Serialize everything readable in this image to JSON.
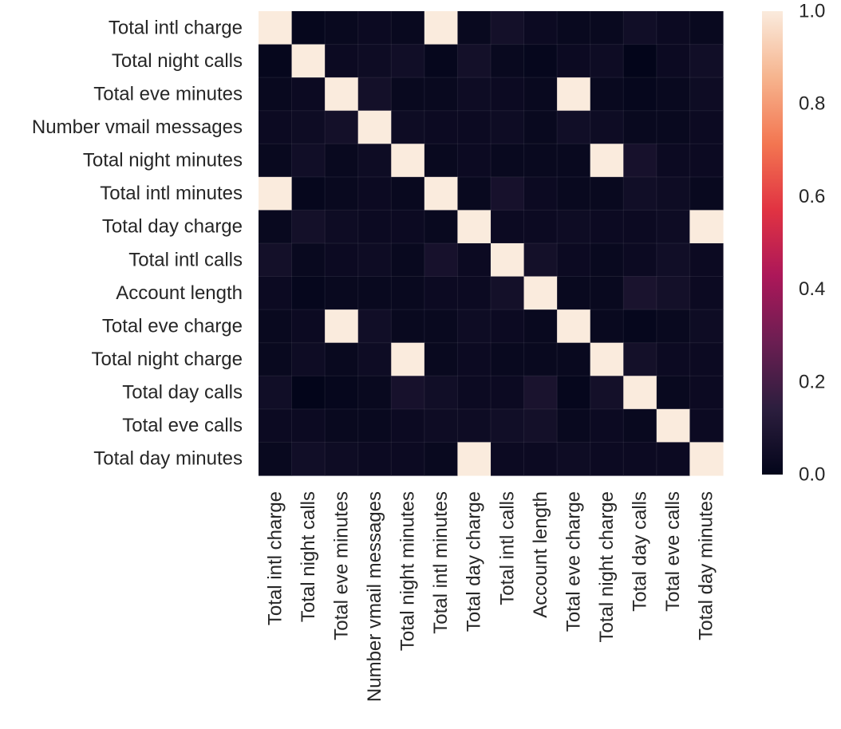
{
  "chart_data": {
    "type": "heatmap",
    "title": "",
    "xlabel": "",
    "ylabel": "",
    "row_labels": [
      "Total intl charge",
      "Total night calls",
      "Total eve minutes",
      "Number vmail messages",
      "Total night minutes",
      "Total intl minutes",
      "Total day charge",
      "Total intl calls",
      "Account length",
      "Total eve charge",
      "Total night charge",
      "Total day calls",
      "Total eve calls",
      "Total day minutes"
    ],
    "col_labels": [
      "Total intl charge",
      "Total night calls",
      "Total eve minutes",
      "Number vmail messages",
      "Total night minutes",
      "Total intl minutes",
      "Total day charge",
      "Total intl calls",
      "Account length",
      "Total eve charge",
      "Total night charge",
      "Total day calls",
      "Total eve calls",
      "Total day minutes"
    ],
    "values": [
      [
        1.0,
        0.01,
        0.02,
        0.03,
        0.02,
        1.0,
        0.02,
        0.06,
        0.03,
        0.02,
        0.02,
        0.05,
        0.03,
        0.02
      ],
      [
        0.01,
        1.0,
        0.03,
        0.04,
        0.05,
        0.01,
        0.06,
        0.02,
        0.01,
        0.03,
        0.04,
        0.0,
        0.03,
        0.05
      ],
      [
        0.02,
        0.03,
        1.0,
        0.06,
        0.02,
        0.02,
        0.04,
        0.03,
        0.02,
        1.0,
        0.02,
        0.01,
        0.02,
        0.04
      ],
      [
        0.03,
        0.04,
        0.06,
        1.0,
        0.04,
        0.03,
        0.03,
        0.04,
        0.02,
        0.05,
        0.04,
        0.02,
        0.02,
        0.03
      ],
      [
        0.02,
        0.05,
        0.02,
        0.04,
        1.0,
        0.02,
        0.03,
        0.02,
        0.02,
        0.02,
        1.0,
        0.07,
        0.03,
        0.03
      ],
      [
        1.0,
        0.01,
        0.02,
        0.03,
        0.02,
        1.0,
        0.02,
        0.07,
        0.03,
        0.02,
        0.02,
        0.05,
        0.04,
        0.02
      ],
      [
        0.02,
        0.06,
        0.04,
        0.03,
        0.03,
        0.02,
        1.0,
        0.03,
        0.03,
        0.04,
        0.03,
        0.03,
        0.04,
        1.0
      ],
      [
        0.06,
        0.02,
        0.03,
        0.04,
        0.02,
        0.07,
        0.03,
        1.0,
        0.06,
        0.03,
        0.02,
        0.03,
        0.05,
        0.03
      ],
      [
        0.03,
        0.01,
        0.02,
        0.02,
        0.02,
        0.03,
        0.03,
        0.06,
        1.0,
        0.02,
        0.02,
        0.08,
        0.06,
        0.03
      ],
      [
        0.02,
        0.03,
        1.0,
        0.05,
        0.02,
        0.02,
        0.04,
        0.03,
        0.02,
        1.0,
        0.02,
        0.01,
        0.02,
        0.04
      ],
      [
        0.02,
        0.04,
        0.02,
        0.04,
        1.0,
        0.02,
        0.03,
        0.02,
        0.02,
        0.02,
        1.0,
        0.06,
        0.03,
        0.03
      ],
      [
        0.05,
        0.0,
        0.01,
        0.02,
        0.07,
        0.05,
        0.03,
        0.03,
        0.08,
        0.01,
        0.06,
        1.0,
        0.02,
        0.03
      ],
      [
        0.03,
        0.03,
        0.02,
        0.02,
        0.03,
        0.04,
        0.04,
        0.05,
        0.06,
        0.02,
        0.03,
        0.02,
        1.0,
        0.03
      ],
      [
        0.02,
        0.05,
        0.04,
        0.03,
        0.03,
        0.02,
        1.0,
        0.03,
        0.03,
        0.04,
        0.03,
        0.03,
        0.03,
        1.0
      ]
    ],
    "colorbar": {
      "range": [
        0.0,
        1.0
      ],
      "ticks": [
        0.0,
        0.2,
        0.4,
        0.6,
        0.8,
        1.0
      ],
      "tick_labels": [
        "0.0",
        "0.2",
        "0.4",
        "0.6",
        "0.8",
        "1.0"
      ]
    },
    "colormap": {
      "name": "rocket",
      "stops": [
        "#03051a",
        "#2c1e3e",
        "#6b1e52",
        "#ac1759",
        "#e13342",
        "#f37651",
        "#f6b48e",
        "#faebdd"
      ]
    },
    "grid": false,
    "legend": "colorbar-right"
  }
}
